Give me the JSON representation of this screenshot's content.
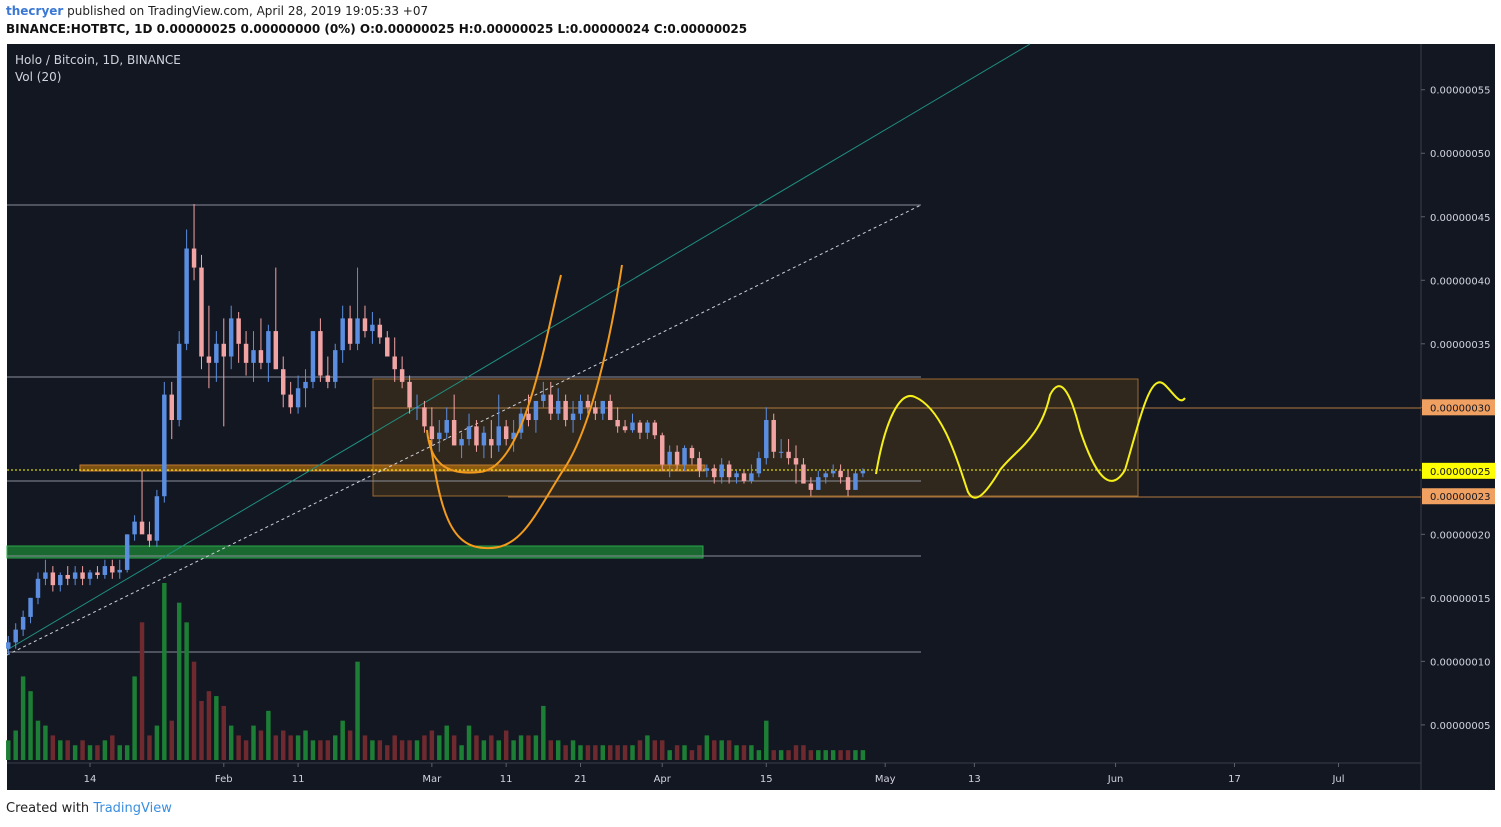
{
  "header": {
    "user": "thecryer",
    "published": "published on TradingView.com, April 28, 2019 19:05:33 +07",
    "symbol_line": "BINANCE:HOTBTC, 1D 0.00000025 0.00000000 (0%) O:0.00000025 H:0.00000025 L:0.00000024 C:0.00000025"
  },
  "footer": {
    "created": "Created with",
    "brand": "TradingView"
  },
  "chart_data": {
    "type": "candlestick",
    "title": "Holo / Bitcoin, 1D, BINANCE",
    "volume_title": "Vol (20)",
    "up_color": "#5b8ee0",
    "down_color": "#f2a3a3",
    "volume_up_color": "#1c7f35",
    "volume_down_color": "#6e2a2e",
    "xlim": [
      2.83,
      193.1
    ],
    "xticks": [
      {
        "value": 14,
        "label": "14"
      },
      {
        "value": 32,
        "label": "Feb"
      },
      {
        "value": 42,
        "label": "11"
      },
      {
        "value": 60,
        "label": "Mar"
      },
      {
        "value": 70,
        "label": "11"
      },
      {
        "value": 80,
        "label": "21"
      },
      {
        "value": 91,
        "label": "Apr"
      },
      {
        "value": 105,
        "label": "15"
      },
      {
        "value": 121,
        "label": "May"
      },
      {
        "value": 133,
        "label": "13"
      },
      {
        "value": 152,
        "label": "Jun"
      },
      {
        "value": 168,
        "label": "17"
      },
      {
        "value": 182,
        "label": "Jul"
      }
    ],
    "ylim": [
      2e-08,
      5.86e-07
    ],
    "yticks": [
      {
        "value": 5e-08,
        "label": "0.00000005"
      },
      {
        "value": 1e-07,
        "label": "0.00000010"
      },
      {
        "value": 1.5e-07,
        "label": "0.00000015"
      },
      {
        "value": 2e-07,
        "label": "0.00000020"
      },
      {
        "value": 2.5e-07,
        "label": "0.00000025"
      },
      {
        "value": 3e-07,
        "label": "0.00000030"
      },
      {
        "value": 3.5e-07,
        "label": "0.00000035"
      },
      {
        "value": 4e-07,
        "label": "0.00000040"
      },
      {
        "value": 4.5e-07,
        "label": "0.00000045"
      },
      {
        "value": 5e-07,
        "label": "0.00000050"
      },
      {
        "value": 5.5e-07,
        "label": "0.00000055"
      }
    ],
    "price_markers": [
      {
        "value": 3e-07,
        "label": "0.00000030",
        "color": "#f0a060"
      },
      {
        "value": 2.5e-07,
        "label": "0.00000025",
        "color": "#ffff00"
      },
      {
        "value": 2.3e-07,
        "label": "0.00000023",
        "color": "#f0a060"
      }
    ],
    "x": [
      3,
      4,
      5,
      6,
      7,
      8,
      9,
      10,
      11,
      12,
      13,
      14,
      15,
      16,
      17,
      18,
      19,
      20,
      21,
      22,
      23,
      24,
      25,
      26,
      27,
      28,
      29,
      30,
      31,
      32,
      33,
      34,
      35,
      36,
      37,
      38,
      39,
      40,
      41,
      42,
      43,
      44,
      45,
      46,
      47,
      48,
      49,
      50,
      51,
      52,
      53,
      54,
      55,
      56,
      57,
      58,
      59,
      60,
      61,
      62,
      63,
      64,
      65,
      66,
      67,
      68,
      69,
      70,
      71,
      72,
      73,
      74,
      75,
      76,
      77,
      78,
      79,
      80,
      81,
      82,
      83,
      84,
      85,
      86,
      87,
      88,
      89,
      90,
      91,
      92,
      93,
      94,
      95,
      96,
      97,
      98,
      99,
      100,
      101,
      102,
      103,
      104,
      105,
      106,
      107,
      108,
      109,
      110,
      111,
      112,
      113,
      114,
      115,
      116,
      117,
      118
    ],
    "open": [
      1.1e-07,
      1.15e-07,
      1.25e-07,
      1.35e-07,
      1.5e-07,
      1.65e-07,
      1.7e-07,
      1.6e-07,
      1.68e-07,
      1.65e-07,
      1.7e-07,
      1.65e-07,
      1.7e-07,
      1.68e-07,
      1.75e-07,
      1.7e-07,
      1.72e-07,
      2e-07,
      2.1e-07,
      2e-07,
      1.95e-07,
      2.3e-07,
      3.1e-07,
      2.9e-07,
      3.5e-07,
      4.25e-07,
      4.1e-07,
      3.4e-07,
      3.35e-07,
      3.5e-07,
      3.4e-07,
      3.7e-07,
      3.5e-07,
      3.35e-07,
      3.45e-07,
      3.35e-07,
      3.6e-07,
      3.3e-07,
      3.1e-07,
      3e-07,
      3.15e-07,
      3.2e-07,
      3.6e-07,
      3.25e-07,
      3.2e-07,
      3.45e-07,
      3.7e-07,
      3.5e-07,
      3.7e-07,
      3.6e-07,
      3.65e-07,
      3.55e-07,
      3.4e-07,
      3.3e-07,
      3.2e-07,
      3e-07,
      3e-07,
      2.85e-07,
      2.75e-07,
      2.8e-07,
      2.9e-07,
      2.7e-07,
      2.75e-07,
      2.85e-07,
      2.7e-07,
      2.75e-07,
      2.7e-07,
      2.85e-07,
      2.75e-07,
      2.8e-07,
      2.95e-07,
      2.9e-07,
      3.05e-07,
      3.1e-07,
      2.95e-07,
      3.05e-07,
      2.9e-07,
      2.95e-07,
      3.05e-07,
      3e-07,
      2.95e-07,
      3.05e-07,
      2.9e-07,
      2.85e-07,
      2.82e-07,
      2.88e-07,
      2.8e-07,
      2.88e-07,
      2.78e-07,
      2.55e-07,
      2.65e-07,
      2.55e-07,
      2.68e-07,
      2.6e-07,
      2.5e-07,
      2.52e-07,
      2.45e-07,
      2.55e-07,
      2.45e-07,
      2.48e-07,
      2.42e-07,
      2.48e-07,
      2.6e-07,
      2.9e-07,
      2.65e-07,
      2.65e-07,
      2.6e-07,
      2.55e-07,
      2.4e-07,
      2.35e-07,
      2.45e-07,
      2.48e-07,
      2.5e-07,
      2.45e-07,
      2.35e-07,
      2.48e-07
    ],
    "high": [
      1.2e-07,
      1.3e-07,
      1.4e-07,
      1.5e-07,
      1.7e-07,
      1.8e-07,
      1.75e-07,
      1.7e-07,
      1.75e-07,
      1.75e-07,
      1.75e-07,
      1.72e-07,
      1.75e-07,
      1.8e-07,
      1.8e-07,
      1.8e-07,
      2e-07,
      2.15e-07,
      2.5e-07,
      2.1e-07,
      2.35e-07,
      3.2e-07,
      3.2e-07,
      3.6e-07,
      4.4e-07,
      4.6e-07,
      4.2e-07,
      3.8e-07,
      3.6e-07,
      3.7e-07,
      3.8e-07,
      3.75e-07,
      3.6e-07,
      3.6e-07,
      3.7e-07,
      3.65e-07,
      4.1e-07,
      3.4e-07,
      3.2e-07,
      3.25e-07,
      3.3e-07,
      3.6e-07,
      3.7e-07,
      3.4e-07,
      3.5e-07,
      3.8e-07,
      3.8e-07,
      4.1e-07,
      3.8e-07,
      3.75e-07,
      3.7e-07,
      3.6e-07,
      3.55e-07,
      3.4e-07,
      3.25e-07,
      3.1e-07,
      3.05e-07,
      3e-07,
      2.9e-07,
      3e-07,
      3.1e-07,
      2.8e-07,
      2.95e-07,
      2.9e-07,
      2.85e-07,
      2.9e-07,
      3.1e-07,
      2.9e-07,
      2.9e-07,
      3e-07,
      3.1e-07,
      3.05e-07,
      3.2e-07,
      3.2e-07,
      3.15e-07,
      3.1e-07,
      3.05e-07,
      3.1e-07,
      3.1e-07,
      3.05e-07,
      3.05e-07,
      3.1e-07,
      3e-07,
      2.9e-07,
      2.95e-07,
      2.9e-07,
      2.9e-07,
      2.9e-07,
      2.8e-07,
      2.7e-07,
      2.7e-07,
      2.7e-07,
      2.7e-07,
      2.65e-07,
      2.55e-07,
      2.55e-07,
      2.6e-07,
      2.58e-07,
      2.5e-07,
      2.5e-07,
      2.55e-07,
      2.65e-07,
      3e-07,
      2.95e-07,
      2.75e-07,
      2.75e-07,
      2.7e-07,
      2.6e-07,
      2.45e-07,
      2.5e-07,
      2.5e-07,
      2.55e-07,
      2.55e-07,
      2.5e-07,
      2.5e-07,
      2.52e-07
    ],
    "low": [
      1.05e-07,
      1.1e-07,
      1.2e-07,
      1.3e-07,
      1.45e-07,
      1.6e-07,
      1.55e-07,
      1.55e-07,
      1.6e-07,
      1.6e-07,
      1.6e-07,
      1.6e-07,
      1.65e-07,
      1.65e-07,
      1.65e-07,
      1.65e-07,
      1.7e-07,
      1.95e-07,
      2.05e-07,
      1.9e-07,
      1.9e-07,
      2.25e-07,
      2.75e-07,
      2.85e-07,
      3.45e-07,
      4e-07,
      3.3e-07,
      3.15e-07,
      3.2e-07,
      2.85e-07,
      3.3e-07,
      3.35e-07,
      3.25e-07,
      3.2e-07,
      3.3e-07,
      3.2e-07,
      3.3e-07,
      3e-07,
      2.95e-07,
      2.95e-07,
      3e-07,
      3.15e-07,
      3.2e-07,
      3.15e-07,
      3.15e-07,
      3.35e-07,
      3.45e-07,
      3.45e-07,
      3.55e-07,
      3.5e-07,
      3.5e-07,
      3.4e-07,
      3.2e-07,
      3.15e-07,
      2.95e-07,
      2.9e-07,
      2.8e-07,
      2.7e-07,
      2.65e-07,
      2.75e-07,
      2.7e-07,
      2.6e-07,
      2.7e-07,
      2.65e-07,
      2.6e-07,
      2.6e-07,
      2.65e-07,
      2.7e-07,
      2.65e-07,
      2.75e-07,
      2.85e-07,
      2.8e-07,
      3e-07,
      2.9e-07,
      2.9e-07,
      2.85e-07,
      2.8e-07,
      2.9e-07,
      2.95e-07,
      2.9e-07,
      2.9e-07,
      2.9e-07,
      2.8e-07,
      2.8e-07,
      2.8e-07,
      2.75e-07,
      2.75e-07,
      2.75e-07,
      2.5e-07,
      2.45e-07,
      2.5e-07,
      2.5e-07,
      2.55e-07,
      2.45e-07,
      2.45e-07,
      2.4e-07,
      2.4e-07,
      2.4e-07,
      2.4e-07,
      2.4e-07,
      2.4e-07,
      2.45e-07,
      2.55e-07,
      2.6e-07,
      2.6e-07,
      2.55e-07,
      2.4e-07,
      2.4e-07,
      2.3e-07,
      2.35e-07,
      2.4e-07,
      2.45e-07,
      2.4e-07,
      2.3e-07,
      2.35e-07,
      2.45e-07
    ],
    "close": [
      1.15e-07,
      1.25e-07,
      1.35e-07,
      1.5e-07,
      1.65e-07,
      1.7e-07,
      1.6e-07,
      1.68e-07,
      1.65e-07,
      1.7e-07,
      1.65e-07,
      1.7e-07,
      1.68e-07,
      1.75e-07,
      1.7e-07,
      1.72e-07,
      2e-07,
      2.1e-07,
      2e-07,
      1.95e-07,
      2.3e-07,
      3.1e-07,
      2.9e-07,
      3.5e-07,
      4.25e-07,
      4.1e-07,
      3.4e-07,
      3.35e-07,
      3.5e-07,
      3.4e-07,
      3.7e-07,
      3.5e-07,
      3.35e-07,
      3.45e-07,
      3.35e-07,
      3.6e-07,
      3.3e-07,
      3.1e-07,
      3e-07,
      3.15e-07,
      3.2e-07,
      3.6e-07,
      3.25e-07,
      3.2e-07,
      3.45e-07,
      3.7e-07,
      3.5e-07,
      3.7e-07,
      3.6e-07,
      3.65e-07,
      3.55e-07,
      3.4e-07,
      3.3e-07,
      3.2e-07,
      3e-07,
      3e-07,
      2.85e-07,
      2.75e-07,
      2.8e-07,
      2.9e-07,
      2.7e-07,
      2.75e-07,
      2.85e-07,
      2.7e-07,
      2.8e-07,
      2.7e-07,
      2.85e-07,
      2.75e-07,
      2.8e-07,
      2.95e-07,
      2.9e-07,
      3.05e-07,
      3.1e-07,
      2.95e-07,
      3.05e-07,
      2.9e-07,
      2.95e-07,
      3.05e-07,
      3e-07,
      2.95e-07,
      3.05e-07,
      2.9e-07,
      2.85e-07,
      2.82e-07,
      2.88e-07,
      2.8e-07,
      2.88e-07,
      2.78e-07,
      2.55e-07,
      2.65e-07,
      2.55e-07,
      2.68e-07,
      2.6e-07,
      2.5e-07,
      2.52e-07,
      2.45e-07,
      2.55e-07,
      2.45e-07,
      2.48e-07,
      2.42e-07,
      2.48e-07,
      2.6e-07,
      2.9e-07,
      2.65e-07,
      2.65e-07,
      2.6e-07,
      2.55e-07,
      2.4e-07,
      2.35e-07,
      2.45e-07,
      2.48e-07,
      2.5e-07,
      2.45e-07,
      2.35e-07,
      2.48e-07,
      2.5e-07
    ],
    "volume": [
      20,
      30,
      85,
      70,
      40,
      35,
      25,
      20,
      20,
      15,
      20,
      15,
      15,
      20,
      25,
      15,
      15,
      85,
      140,
      25,
      35,
      180,
      40,
      160,
      140,
      100,
      60,
      70,
      65,
      55,
      35,
      25,
      20,
      35,
      30,
      50,
      25,
      30,
      25,
      25,
      30,
      20,
      20,
      20,
      25,
      40,
      30,
      100,
      25,
      20,
      20,
      15,
      25,
      20,
      20,
      20,
      25,
      30,
      25,
      35,
      25,
      15,
      35,
      25,
      20,
      25,
      20,
      30,
      20,
      25,
      25,
      25,
      55,
      20,
      20,
      15,
      20,
      15,
      15,
      15,
      15,
      15,
      15,
      15,
      15,
      20,
      25,
      20,
      20,
      10,
      15,
      15,
      10,
      15,
      25,
      20,
      20,
      20,
      15,
      15,
      15,
      10,
      40,
      10,
      10,
      10,
      15,
      15,
      10,
      10,
      10,
      10,
      10,
      10,
      10,
      10
    ]
  }
}
